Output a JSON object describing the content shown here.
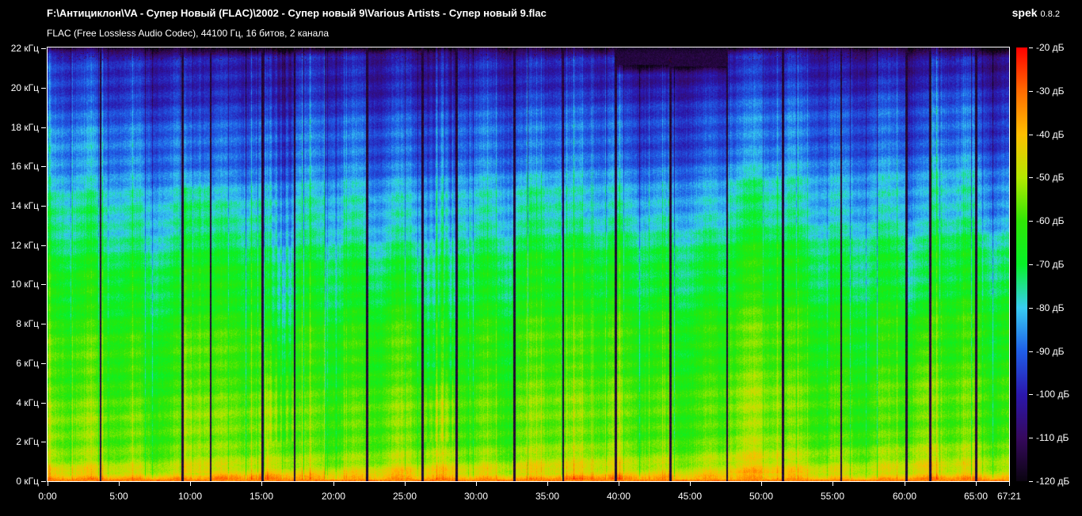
{
  "window": {
    "background": "#000000",
    "text_color": "#ffffff"
  },
  "header": {
    "file_path": "F:\\Антициклон\\VA - Супер Новый (FLAC)\\2002 - Супер новый 9\\Various Artists - Супер новый 9.flac",
    "app_name": "spek",
    "app_version": "0.8.2"
  },
  "info_line": "FLAC (Free Lossless Audio Codec), 44100 Гц, 16 битов, 2 канала",
  "chart_data": {
    "type": "heatmap",
    "subtype": "audio-spectrogram",
    "x_axis": {
      "unit": "время (мин:сек)",
      "range_minutes": [
        0,
        67.35
      ],
      "duration_label": "67:21",
      "ticks": [
        {
          "minutes": 0,
          "label": "0:00"
        },
        {
          "minutes": 5,
          "label": "5:00"
        },
        {
          "minutes": 10,
          "label": "10:00"
        },
        {
          "minutes": 15,
          "label": "15:00"
        },
        {
          "minutes": 20,
          "label": "20:00"
        },
        {
          "minutes": 25,
          "label": "25:00"
        },
        {
          "minutes": 30,
          "label": "30:00"
        },
        {
          "minutes": 35,
          "label": "35:00"
        },
        {
          "minutes": 40,
          "label": "40:00"
        },
        {
          "minutes": 45,
          "label": "45:00"
        },
        {
          "minutes": 50,
          "label": "50:00"
        },
        {
          "minutes": 55,
          "label": "55:00"
        },
        {
          "minutes": 60,
          "label": "60:00"
        },
        {
          "minutes": 65,
          "label": "65:00"
        },
        {
          "minutes": 67.35,
          "label": "67:21"
        }
      ]
    },
    "y_axis": {
      "unit": "кГц",
      "range_khz": [
        0,
        22.05
      ],
      "ticks": [
        {
          "khz": 22,
          "label": "22 кГц"
        },
        {
          "khz": 20,
          "label": "20 кГц"
        },
        {
          "khz": 18,
          "label": "18 кГц"
        },
        {
          "khz": 16,
          "label": "16 кГц"
        },
        {
          "khz": 14,
          "label": "14 кГц"
        },
        {
          "khz": 12,
          "label": "12 кГц"
        },
        {
          "khz": 10,
          "label": "10 кГц"
        },
        {
          "khz": 8,
          "label": "8 кГц"
        },
        {
          "khz": 6,
          "label": "6 кГц"
        },
        {
          "khz": 4,
          "label": "4 кГц"
        },
        {
          "khz": 2,
          "label": "2 кГц"
        },
        {
          "khz": 0,
          "label": "0 кГц"
        }
      ]
    },
    "legend": {
      "unit": "дБ",
      "range_db": [
        -20,
        -120
      ],
      "ticks": [
        {
          "db": -20,
          "label": "-20 дБ"
        },
        {
          "db": -30,
          "label": "-30 дБ"
        },
        {
          "db": -40,
          "label": "-40 дБ"
        },
        {
          "db": -50,
          "label": "-50 дБ"
        },
        {
          "db": -60,
          "label": "-60 дБ"
        },
        {
          "db": -70,
          "label": "-70 дБ"
        },
        {
          "db": -80,
          "label": "-80 дБ"
        },
        {
          "db": -90,
          "label": "-90 дБ"
        },
        {
          "db": -100,
          "label": "-100 дБ"
        },
        {
          "db": -110,
          "label": "-110 дБ"
        },
        {
          "db": -120,
          "label": "-120 дБ"
        }
      ],
      "palette": [
        {
          "db": -20,
          "color": "#ff0000"
        },
        {
          "db": -30,
          "color": "#ff6a00"
        },
        {
          "db": -40,
          "color": "#ffbe00"
        },
        {
          "db": -50,
          "color": "#b4e800"
        },
        {
          "db": -60,
          "color": "#30e606"
        },
        {
          "db": -70,
          "color": "#06f228"
        },
        {
          "db": -80,
          "color": "#38cdf2"
        },
        {
          "db": -90,
          "color": "#1f5fe8"
        },
        {
          "db": -100,
          "color": "#2b17ad"
        },
        {
          "db": -110,
          "color": "#36095e"
        },
        {
          "db": -120,
          "color": "#0a0410"
        }
      ]
    },
    "spectrogram": {
      "base_curve_khz_db": [
        [
          0,
          -31
        ],
        [
          0.1,
          -36
        ],
        [
          0.4,
          -46
        ],
        [
          1,
          -52
        ],
        [
          2,
          -56
        ],
        [
          4,
          -59
        ],
        [
          6,
          -61
        ],
        [
          8,
          -64
        ],
        [
          10,
          -68
        ],
        [
          12,
          -73
        ],
        [
          14,
          -79
        ],
        [
          16,
          -85
        ],
        [
          18,
          -90
        ],
        [
          20,
          -95
        ],
        [
          21,
          -98
        ],
        [
          22.05,
          -101
        ]
      ],
      "tracks": [
        {
          "start_min": 0.0
        },
        {
          "start_min": 3.72
        },
        {
          "start_min": 9.43,
          "mid_boost_db": 6
        },
        {
          "start_min": 11.43,
          "top_offset_db": -4,
          "top_from_khz": 13
        },
        {
          "start_min": 15.03,
          "top_offset_db": -7,
          "top_from_khz": 5,
          "striped": true
        },
        {
          "start_min": 17.31
        },
        {
          "start_min": 22.36,
          "top_offset_db": -4,
          "top_from_khz": 9
        },
        {
          "start_min": 26.24,
          "top_offset_db": -7,
          "top_from_khz": 4,
          "striped": true
        },
        {
          "start_min": 28.63
        },
        {
          "start_min": 32.68,
          "mid_boost_db": 3
        },
        {
          "start_min": 36.12,
          "top_offset_db": -3,
          "top_from_khz": 12
        },
        {
          "start_min": 39.78,
          "cutoff_khz": 21.15,
          "top_offset_db": -4,
          "top_from_khz": 13
        },
        {
          "start_min": 43.61,
          "cutoff_khz": 21.1,
          "top_offset_db": -3,
          "top_from_khz": 13
        },
        {
          "start_min": 47.6,
          "mid_boost_db": 3
        },
        {
          "start_min": 51.48
        },
        {
          "start_min": 55.59
        },
        {
          "start_min": 60.14,
          "top_offset_db": -6,
          "top_from_khz": 7
        },
        {
          "start_min": 61.8
        },
        {
          "start_min": 65.02,
          "top_offset_db": -3,
          "top_from_khz": 11
        }
      ]
    }
  }
}
